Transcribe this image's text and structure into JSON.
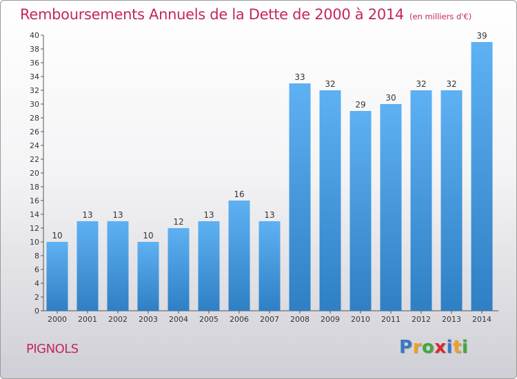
{
  "title": "Remboursements Annuels de la Dette de 2000 à 2014",
  "subtitle": "(en milliers d'€)",
  "commune": "PIGNOLS",
  "logo": {
    "letters": [
      "P",
      "r",
      "o",
      "x",
      "i",
      "t",
      "i"
    ],
    "colors": [
      "#3b78c4",
      "#f0a023",
      "#3faa3a",
      "#d9262e",
      "#3b78c4",
      "#f0a023",
      "#3faa3a"
    ]
  },
  "colors": {
    "accent": "#c4265e",
    "bar": "#3a8fd6",
    "bar_light": "#5aaef0",
    "axis": "#555555"
  },
  "chart_data": {
    "type": "bar",
    "title": "Remboursements Annuels de la Dette de 2000 à 2014",
    "subtitle": "(en milliers d'€)",
    "categories": [
      "2000",
      "2001",
      "2002",
      "2003",
      "2004",
      "2005",
      "2006",
      "2007",
      "2008",
      "2009",
      "2010",
      "2011",
      "2012",
      "2013",
      "2014"
    ],
    "values": [
      10,
      13,
      13,
      10,
      12,
      13,
      16,
      13,
      33,
      32,
      29,
      30,
      32,
      32,
      39
    ],
    "ylim": [
      0,
      40
    ],
    "yticks": [
      0,
      2,
      4,
      6,
      8,
      10,
      12,
      14,
      16,
      18,
      20,
      22,
      24,
      26,
      28,
      30,
      32,
      34,
      36,
      38,
      40
    ],
    "xlabel": "",
    "ylabel": "",
    "grid": false,
    "data_labels": true
  }
}
